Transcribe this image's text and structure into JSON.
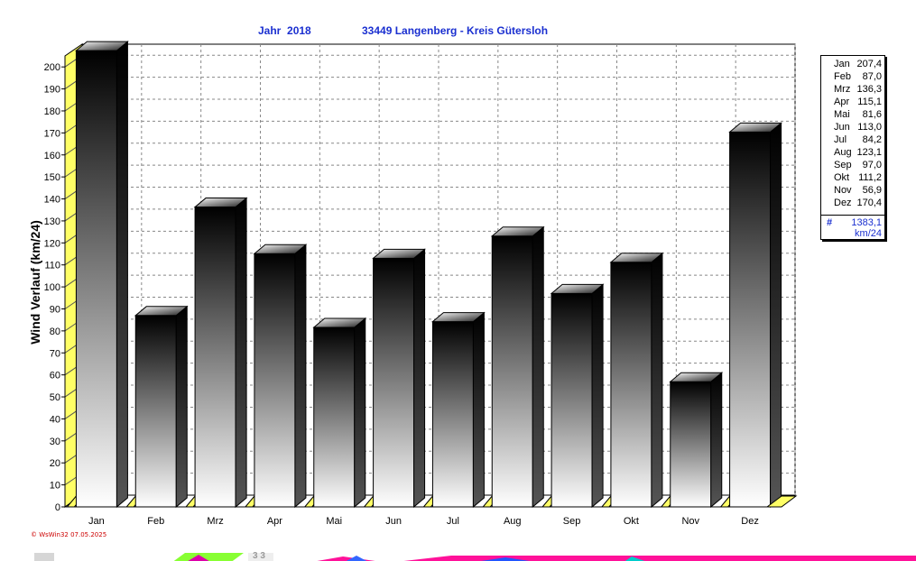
{
  "header": {
    "title_left": "Jahr  2018",
    "title_right": "33449 Langenberg - Kreis Gütersloh"
  },
  "chart_data": {
    "type": "bar",
    "categories": [
      "Jan",
      "Feb",
      "Mrz",
      "Apr",
      "Mai",
      "Jun",
      "Jul",
      "Aug",
      "Sep",
      "Okt",
      "Nov",
      "Dez"
    ],
    "values": [
      207.4,
      87.0,
      136.3,
      115.1,
      81.6,
      113.0,
      84.2,
      123.1,
      97.0,
      111.2,
      56.9,
      170.4
    ],
    "ylabel": "Wind Verlauf  (km/24)",
    "ylim": [
      0,
      205
    ],
    "yticks": [
      0,
      10,
      20,
      30,
      40,
      50,
      60,
      70,
      80,
      90,
      100,
      110,
      120,
      130,
      140,
      150,
      160,
      170,
      180,
      190,
      200
    ],
    "grid": true,
    "legend_placement": "right"
  },
  "legend": {
    "rows": [
      {
        "month": "Jan",
        "value": "207,4"
      },
      {
        "month": "Feb",
        "value": "87,0"
      },
      {
        "month": "Mrz",
        "value": "136,3"
      },
      {
        "month": "Apr",
        "value": "115,1"
      },
      {
        "month": "Mai",
        "value": "81,6"
      },
      {
        "month": "Jun",
        "value": "113,0"
      },
      {
        "month": "Jul",
        "value": "84,2"
      },
      {
        "month": "Aug",
        "value": "123,1"
      },
      {
        "month": "Sep",
        "value": "97,0"
      },
      {
        "month": "Okt",
        "value": "111,2"
      },
      {
        "month": "Nov",
        "value": "56,9"
      },
      {
        "month": "Dez",
        "value": "170,4"
      }
    ],
    "total_symbol": "#",
    "total_value": "1383,1",
    "total_unit": "km/24"
  },
  "footer": {
    "credit": "© WsWin32  07.05.2025"
  },
  "bottom_strip": {
    "label": "3 3"
  },
  "colors": {
    "title": "#1a2fd0",
    "wall": "#ffff66",
    "bar_top": "#ffffff",
    "bar_dark": "#000000",
    "credit": "#cc0000"
  }
}
